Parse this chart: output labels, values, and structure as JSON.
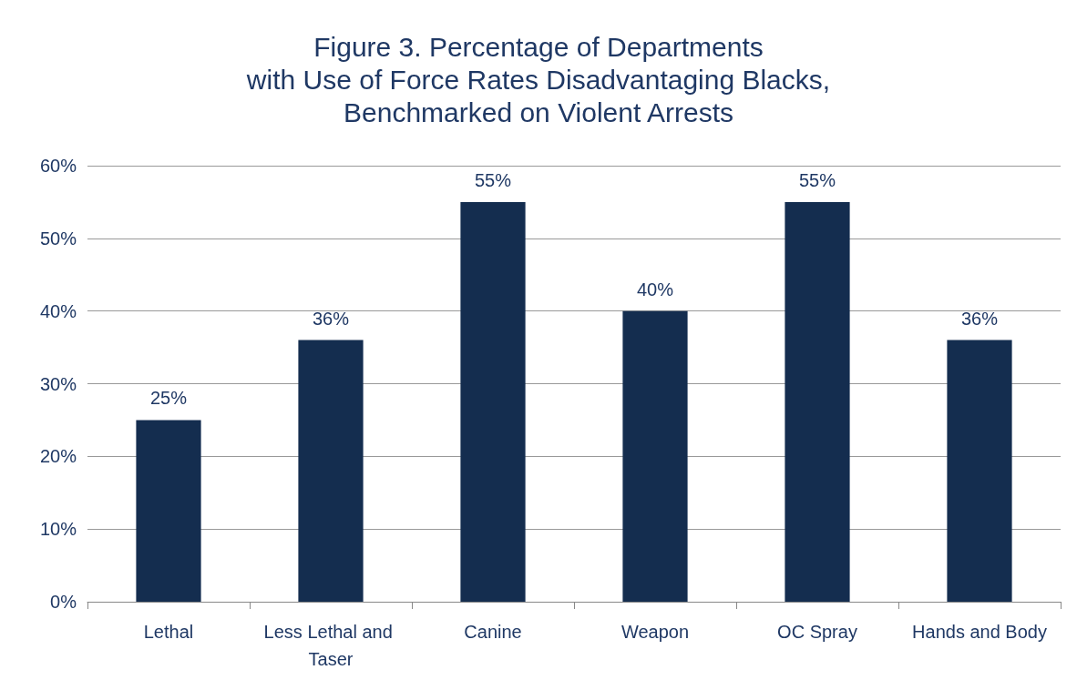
{
  "chart_data": {
    "type": "bar",
    "title": "Figure 3. Percentage of Departments\nwith Use of Force Rates Disadvantaging Blacks,\nBenchmarked on Violent Arrests",
    "categories": [
      "Lethal",
      "Less Lethal and Taser",
      "Canine",
      "Weapon",
      "OC Spray",
      "Hands and Body"
    ],
    "values": [
      25,
      36,
      55,
      40,
      55,
      36
    ],
    "value_labels": [
      "25%",
      "36%",
      "55%",
      "40%",
      "55%",
      "36%"
    ],
    "color": "#142d4f",
    "ylim": [
      0,
      60
    ],
    "yticks": [
      {
        "value": 0,
        "label": "0%"
      },
      {
        "value": 10,
        "label": "10%"
      },
      {
        "value": 20,
        "label": "20%"
      },
      {
        "value": 30,
        "label": "30%"
      },
      {
        "value": 40,
        "label": "40%"
      },
      {
        "value": 50,
        "label": "50%"
      },
      {
        "value": 60,
        "label": "60%"
      }
    ],
    "grid": "y"
  }
}
